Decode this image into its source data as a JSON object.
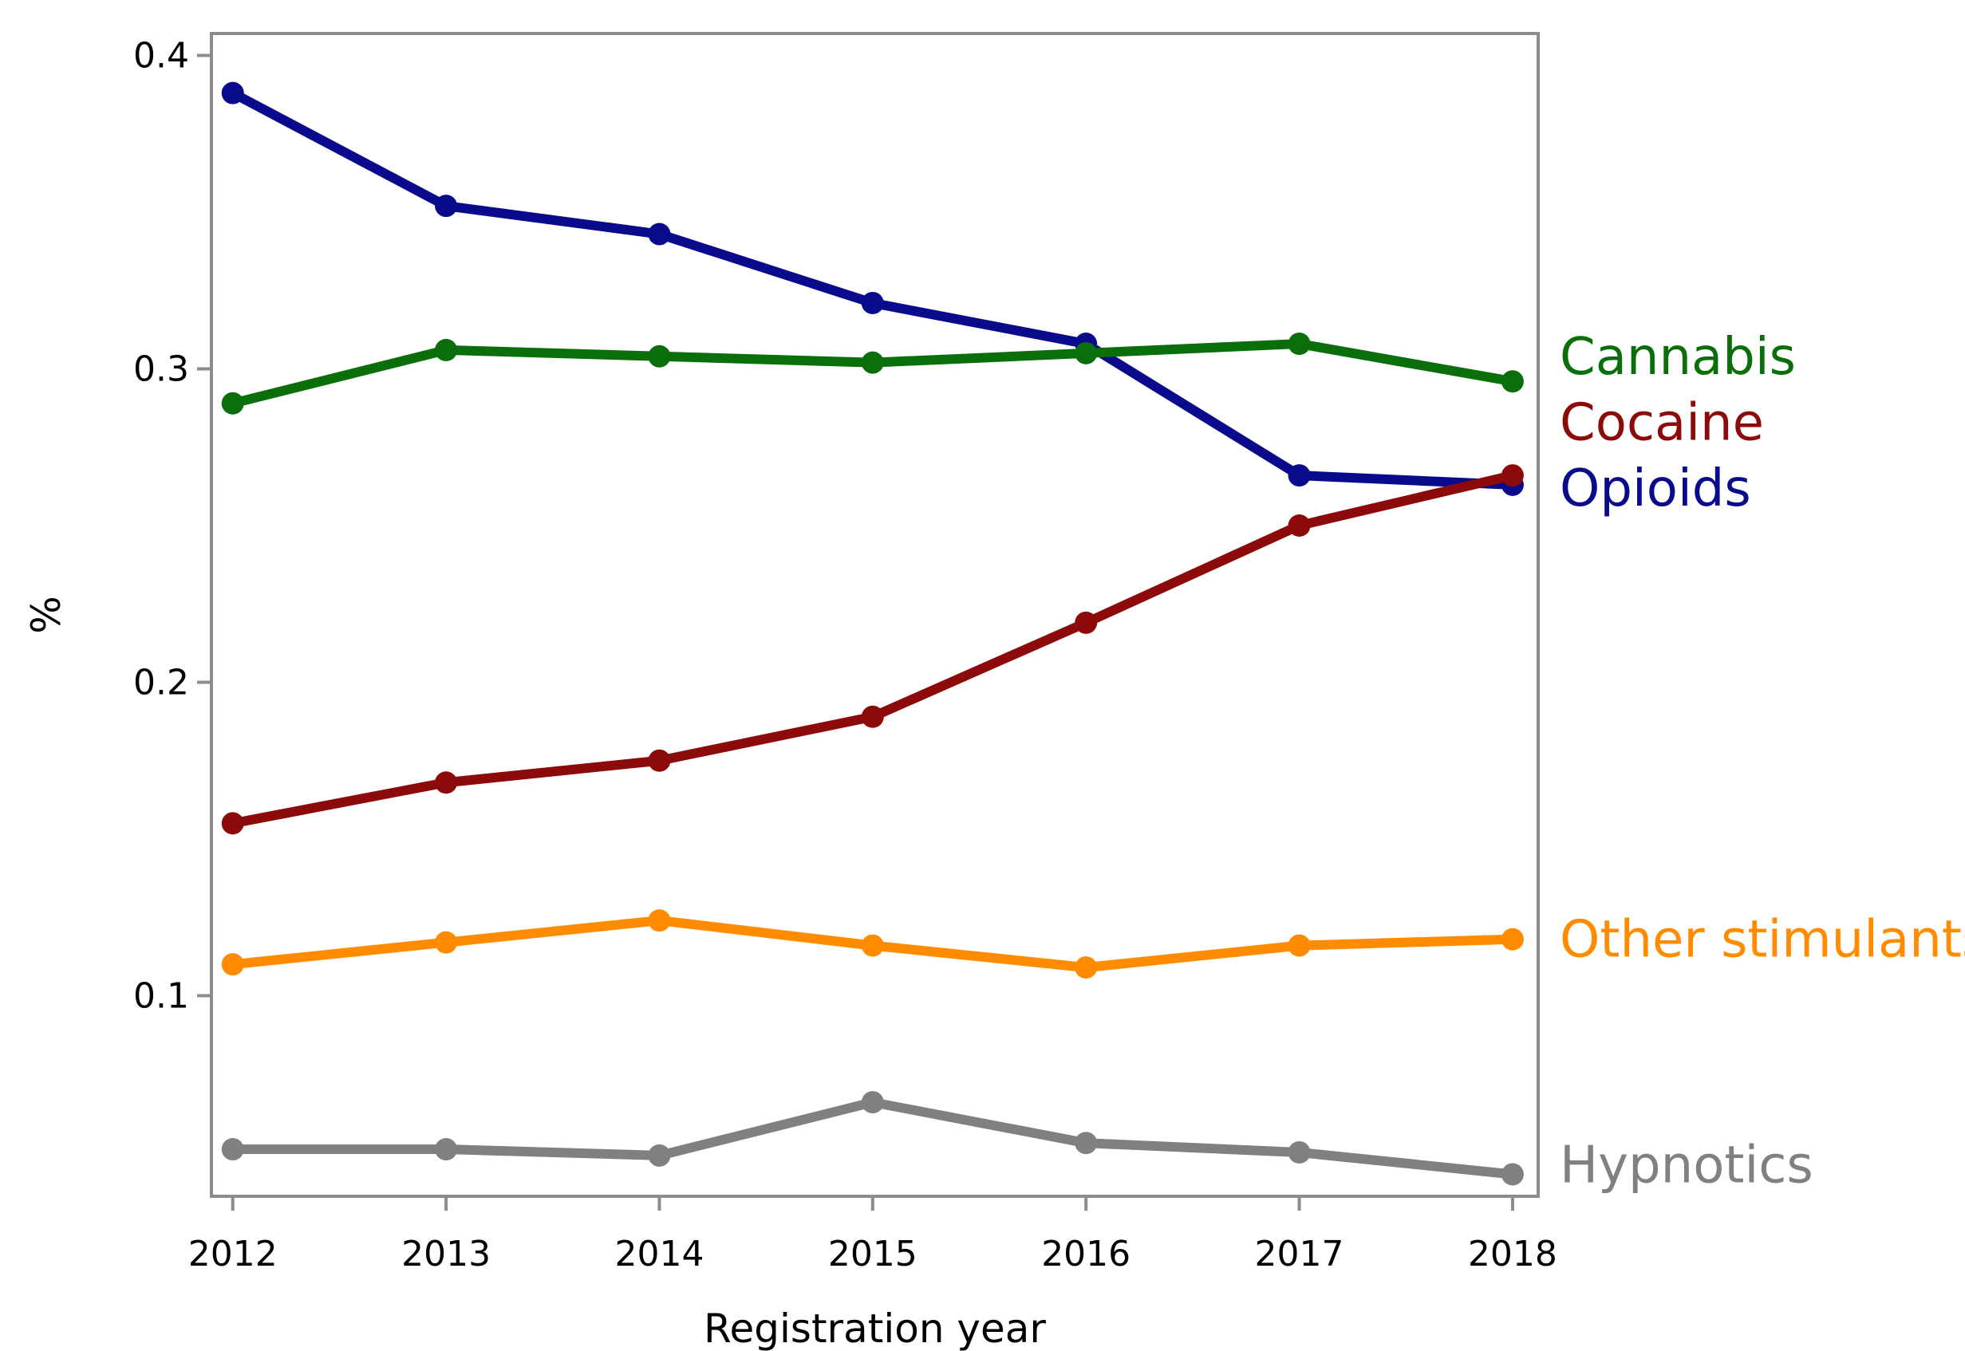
{
  "chart_data": {
    "type": "line",
    "xlabel": "Registration year",
    "ylabel": "%",
    "x": [
      2012,
      2013,
      2014,
      2015,
      2016,
      2017,
      2018
    ],
    "xlim": [
      2011.9,
      2018.12
    ],
    "ylim": [
      0.036,
      0.407
    ],
    "yticks": [
      0.1,
      0.2,
      0.3,
      0.4
    ],
    "ytick_labels": [
      "0.1",
      "0.2",
      "0.3",
      "0.4"
    ],
    "xtick_labels": [
      "2012",
      "2013",
      "2014",
      "2015",
      "2016",
      "2017",
      "2018"
    ],
    "grid": false,
    "legend": "inline labels at right end of each line",
    "series": [
      {
        "name": "Opioids",
        "color": "#0a0a8c",
        "values": [
          0.388,
          0.352,
          0.343,
          0.321,
          0.308,
          0.266,
          0.263
        ]
      },
      {
        "name": "Cannabis",
        "color": "#0a6e0a",
        "values": [
          0.289,
          0.306,
          0.304,
          0.302,
          0.305,
          0.308,
          0.296
        ]
      },
      {
        "name": "Cocaine",
        "color": "#8c0a0a",
        "values": [
          0.155,
          0.168,
          0.175,
          0.189,
          0.219,
          0.25,
          0.266
        ]
      },
      {
        "name": "Other stimulants",
        "color": "#ff8c00",
        "values": [
          0.11,
          0.117,
          0.124,
          0.116,
          0.109,
          0.116,
          0.118
        ]
      },
      {
        "name": "Hypnotics",
        "color": "#808080",
        "values": [
          0.051,
          0.051,
          0.049,
          0.066,
          0.053,
          0.05,
          0.043
        ]
      }
    ],
    "series_labels": [
      {
        "name": "Cannabis",
        "color": "#0a6e0a",
        "y": 0.304
      },
      {
        "name": "Cocaine",
        "color": "#8c0a0a",
        "y": 0.283
      },
      {
        "name": "Opioids",
        "color": "#0a0a8c",
        "y": 0.262
      },
      {
        "name": "Other stimulants",
        "color": "#ff8c00",
        "y": 0.118
      },
      {
        "name": "Hypnotics",
        "color": "#808080",
        "y": 0.046
      }
    ]
  }
}
